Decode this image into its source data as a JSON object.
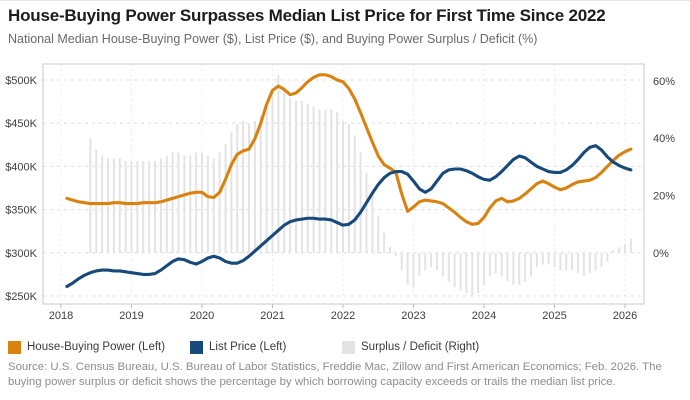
{
  "header": {
    "title": "House-Buying Power Surpasses Median List Price for First Time Since 2022",
    "subtitle": "National Median House-Buying Power ($), List Price ($), and Buying Power Surplus / Deficit (%)"
  },
  "legend": {
    "items": [
      {
        "label": "House-Buying Power (Left)",
        "color": "#D9820F"
      },
      {
        "label": "List Price (Left)",
        "color": "#17497A"
      },
      {
        "label": "Surplus / Deficit (Right)",
        "color": "#E3E3E3"
      }
    ]
  },
  "source_note": "Source: U.S. Census Bureau, U.S. Bureau of Labor Statistics, Freddie Mac, Zillow and First American Economics; Feb. 2026. The buying power surplus or deficit shows the percentage by which borrowing capacity exceeds or trails the median list price.",
  "chart_data": {
    "type": "combo-line-bar",
    "title": "House-Buying Power Surpasses Median List Price for First Time Since 2022",
    "x_axis": {
      "tick_labels": [
        "2018",
        "2019",
        "2020",
        "2021",
        "2022",
        "2023",
        "2024",
        "2025",
        "2026"
      ],
      "start_year": 2018
    },
    "y_left_axis": {
      "tick_values": [
        250,
        300,
        350,
        400,
        450,
        500
      ],
      "tick_labels": [
        "$250K",
        "$300K",
        "$350K",
        "$400K",
        "$450K",
        "$500K"
      ],
      "unit": "USD thousands",
      "range": [
        250,
        500
      ]
    },
    "y_right_axis": {
      "tick_values": [
        0,
        20,
        40,
        60
      ],
      "tick_labels": [
        "0%",
        "20%",
        "40%",
        "60%"
      ],
      "unit": "percent"
    },
    "grid": "dashed horizontal and vertical",
    "legend_position": "bottom",
    "series": [
      {
        "name": "House-Buying Power",
        "legend_label": "House-Buying Power (Left)",
        "type": "line",
        "axis": "left",
        "color": "#D9820F",
        "start_month": "2018-02",
        "frequency": "monthly",
        "unit": "USD thousands",
        "values": [
          363,
          361,
          359,
          358,
          357,
          357,
          357,
          357,
          358,
          358,
          357,
          357,
          357,
          358,
          358,
          358,
          359,
          361,
          363,
          365,
          367,
          369,
          370,
          370,
          365,
          364,
          370,
          385,
          402,
          414,
          418,
          420,
          432,
          450,
          472,
          488,
          493,
          489,
          483,
          485,
          491,
          498,
          503,
          506,
          506,
          504,
          500,
          498,
          490,
          478,
          462,
          445,
          428,
          412,
          402,
          398,
          393,
          368,
          348,
          353,
          359,
          361,
          360,
          359,
          357,
          352,
          347,
          341,
          336,
          333,
          334,
          341,
          352,
          360,
          363,
          359,
          360,
          363,
          368,
          374,
          380,
          383,
          380,
          376,
          373,
          375,
          379,
          382,
          383,
          384,
          387,
          393,
          400,
          407,
          413,
          417,
          420
        ]
      },
      {
        "name": "List Price",
        "legend_label": "List Price (Left)",
        "type": "line",
        "axis": "left",
        "color": "#17497A",
        "start_month": "2018-02",
        "frequency": "monthly",
        "unit": "USD thousands",
        "values": [
          261,
          265,
          270,
          274,
          277,
          279,
          280,
          280,
          279,
          279,
          278,
          277,
          276,
          275,
          275,
          276,
          280,
          285,
          290,
          293,
          292,
          289,
          287,
          290,
          294,
          296,
          294,
          290,
          288,
          288,
          291,
          296,
          302,
          308,
          314,
          320,
          326,
          332,
          336,
          338,
          339,
          340,
          340,
          339,
          339,
          338,
          335,
          332,
          333,
          338,
          347,
          358,
          369,
          379,
          387,
          392,
          394,
          394,
          391,
          383,
          374,
          370,
          374,
          383,
          392,
          396,
          397,
          397,
          395,
          392,
          388,
          385,
          384,
          388,
          394,
          401,
          408,
          412,
          410,
          405,
          400,
          397,
          394,
          393,
          393,
          396,
          401,
          408,
          416,
          422,
          424,
          419,
          411,
          405,
          401,
          398,
          396
        ]
      },
      {
        "name": "Surplus / Deficit",
        "legend_label": "Surplus / Deficit (Right)",
        "type": "bar",
        "axis": "right",
        "color": "#E3E3E3",
        "start_month": "2018-06",
        "frequency": "monthly",
        "unit": "percent",
        "values": [
          40,
          36,
          34,
          33,
          33,
          33,
          32,
          32,
          32,
          32,
          32,
          32,
          33,
          34,
          35,
          35,
          34,
          34,
          35,
          35,
          34,
          33,
          35,
          38,
          42,
          45,
          46,
          45,
          46,
          48,
          52,
          57,
          62,
          58,
          54,
          53,
          53,
          52,
          51,
          50,
          50,
          50,
          49,
          46,
          45,
          41,
          35,
          28,
          20,
          13,
          7,
          2,
          -1,
          -6,
          -11,
          -12,
          -8,
          -6,
          -5,
          -6,
          -8,
          -10,
          -12,
          -13,
          -14,
          -15,
          -14,
          -11,
          -8,
          -7,
          -8,
          -10,
          -11,
          -11,
          -10,
          -8,
          -5,
          -4,
          -4,
          -5,
          -6,
          -6,
          -6,
          -7,
          -8,
          -7,
          -6,
          -5,
          -3,
          1,
          2,
          3,
          5
        ]
      }
    ]
  }
}
